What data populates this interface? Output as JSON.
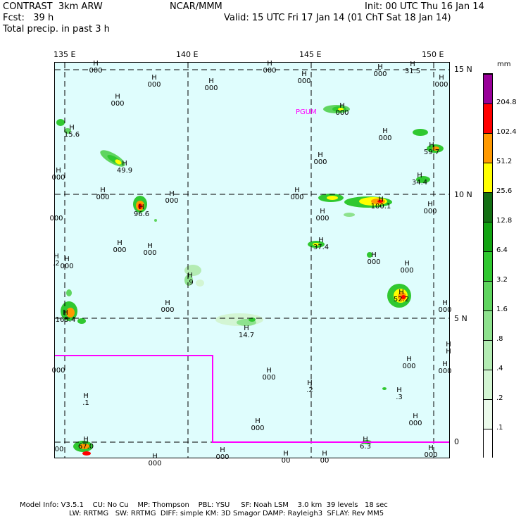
{
  "header": {
    "model": "CONTRAST  3km ARW",
    "fcst": "Fcst:   39 h",
    "field": "Total precip. in past 3 h",
    "center": "NCAR/MMM",
    "init": "Init: 00 UTC Thu 16 Jan 14",
    "valid": "Valid: 15 UTC Fri 17 Jan 14 (01 ChT Sat 18 Jan 14)"
  },
  "map": {
    "lon_labels": [
      "135 E",
      "140 E",
      "145 E",
      "150 E"
    ],
    "lat_labels": [
      "15 N",
      "10 N",
      "5 N",
      "0"
    ],
    "station_label": "PGUM",
    "colors": {
      "ocean": "#dffdfd",
      "grid": "#000000",
      "boundary": "#ff00ff",
      "station": "#ff00ff"
    }
  },
  "markers": [
    {
      "h": "H",
      "v": "000"
    },
    {
      "h": "H",
      "v": "000"
    },
    {
      "h": "H",
      "v": "000"
    },
    {
      "h": "H",
      "v": "000"
    },
    {
      "h": "H",
      "v": "000"
    },
    {
      "h": "H",
      "v": "000"
    },
    {
      "h": "H",
      "v": "000"
    },
    {
      "h": "H",
      "v": "31.5"
    },
    {
      "h": "H",
      "v": "000"
    },
    {
      "h": "H",
      "v": "15.6"
    },
    {
      "h": "H",
      "v": "000"
    },
    {
      "h": "H",
      "v": "59.7"
    },
    {
      "h": "H",
      "v": "49.9"
    },
    {
      "h": "H",
      "v": "000"
    },
    {
      "h": "H",
      "v": "34.4"
    },
    {
      "h": "H",
      "v": "000"
    },
    {
      "h": "H",
      "v": "000"
    },
    {
      "h": "H",
      "v": "000"
    },
    {
      "h": "H",
      "v": "100.1"
    },
    {
      "h": "H",
      "v": "96.6"
    },
    {
      "h": "H",
      "v": "000"
    },
    {
      "h": "H",
      "v": "000"
    },
    {
      "h": "H",
      "v": "000"
    },
    {
      "h": "H",
      "v": "37.4"
    },
    {
      "h": "H",
      "v": "000"
    },
    {
      "h": "H",
      "v": "000"
    },
    {
      "h": "H",
      "v": "000"
    },
    {
      "h": "H",
      "v": "000"
    },
    {
      "h": "H",
      "v": ".9"
    },
    {
      "h": "H",
      "v": "52.2"
    },
    {
      "h": "H",
      "v": "000"
    },
    {
      "h": "H",
      "v": "165.4"
    },
    {
      "h": "H",
      "v": "14.7"
    },
    {
      "h": "H",
      "v": "000"
    },
    {
      "h": "H",
      "v": "000"
    },
    {
      "h": "H",
      "v": ".2"
    },
    {
      "h": "H",
      "v": ".3"
    },
    {
      "h": "H",
      "v": ".1"
    },
    {
      "h": "H",
      "v": "000"
    },
    {
      "h": "H",
      "v": "000"
    },
    {
      "h": "H",
      "v": "67.0"
    },
    {
      "h": "H",
      "v": "6.3"
    },
    {
      "h": "H",
      "v": "000"
    },
    {
      "h": "H",
      "v": "000"
    },
    {
      "h": "H",
      "v": "000"
    },
    {
      "h": "H",
      "v": "000"
    },
    {
      "h": "H",
      "v": "000"
    },
    {
      "h": "H",
      "v": "000"
    },
    {
      "h": "",
      "v": "000"
    },
    {
      "h": "",
      "v": "000"
    },
    {
      "h": "",
      "v": "00"
    },
    {
      "h": "H",
      "v": "000"
    },
    {
      "h": "H",
      "v": "00"
    },
    {
      "h": "H",
      "v": "00"
    },
    {
      "h": "H",
      "v": "H"
    },
    {
      "h": "H",
      "v": ".2"
    }
  ],
  "colorbar": {
    "unit": "mm",
    "levels": [
      ".1",
      ".2",
      ".4",
      ".8",
      "1.6",
      "3.2",
      "6.4",
      "12.8",
      "25.6",
      "51.2",
      "102.4",
      "204.8"
    ],
    "colors": [
      "#ffffff",
      "#ebfaeb",
      "#d3f5d3",
      "#b4ecb4",
      "#8ee28e",
      "#5fd55f",
      "#30c830",
      "#12a412",
      "#137013",
      "#ffff00",
      "#ff9900",
      "#ff0000",
      "#990099"
    ]
  },
  "footer": {
    "line1": "Model Info: V3.5.1    CU: No Cu    MP: Thompson    PBL: YSU     SF: Noah LSM    3.0 km  39 levels   18 sec",
    "line2": "LW: RRTMG   SW: RRTMG  DIFF: simple KM: 3D Smagor DAMP: Rayleigh3  SFLAY: Rev MM5"
  }
}
